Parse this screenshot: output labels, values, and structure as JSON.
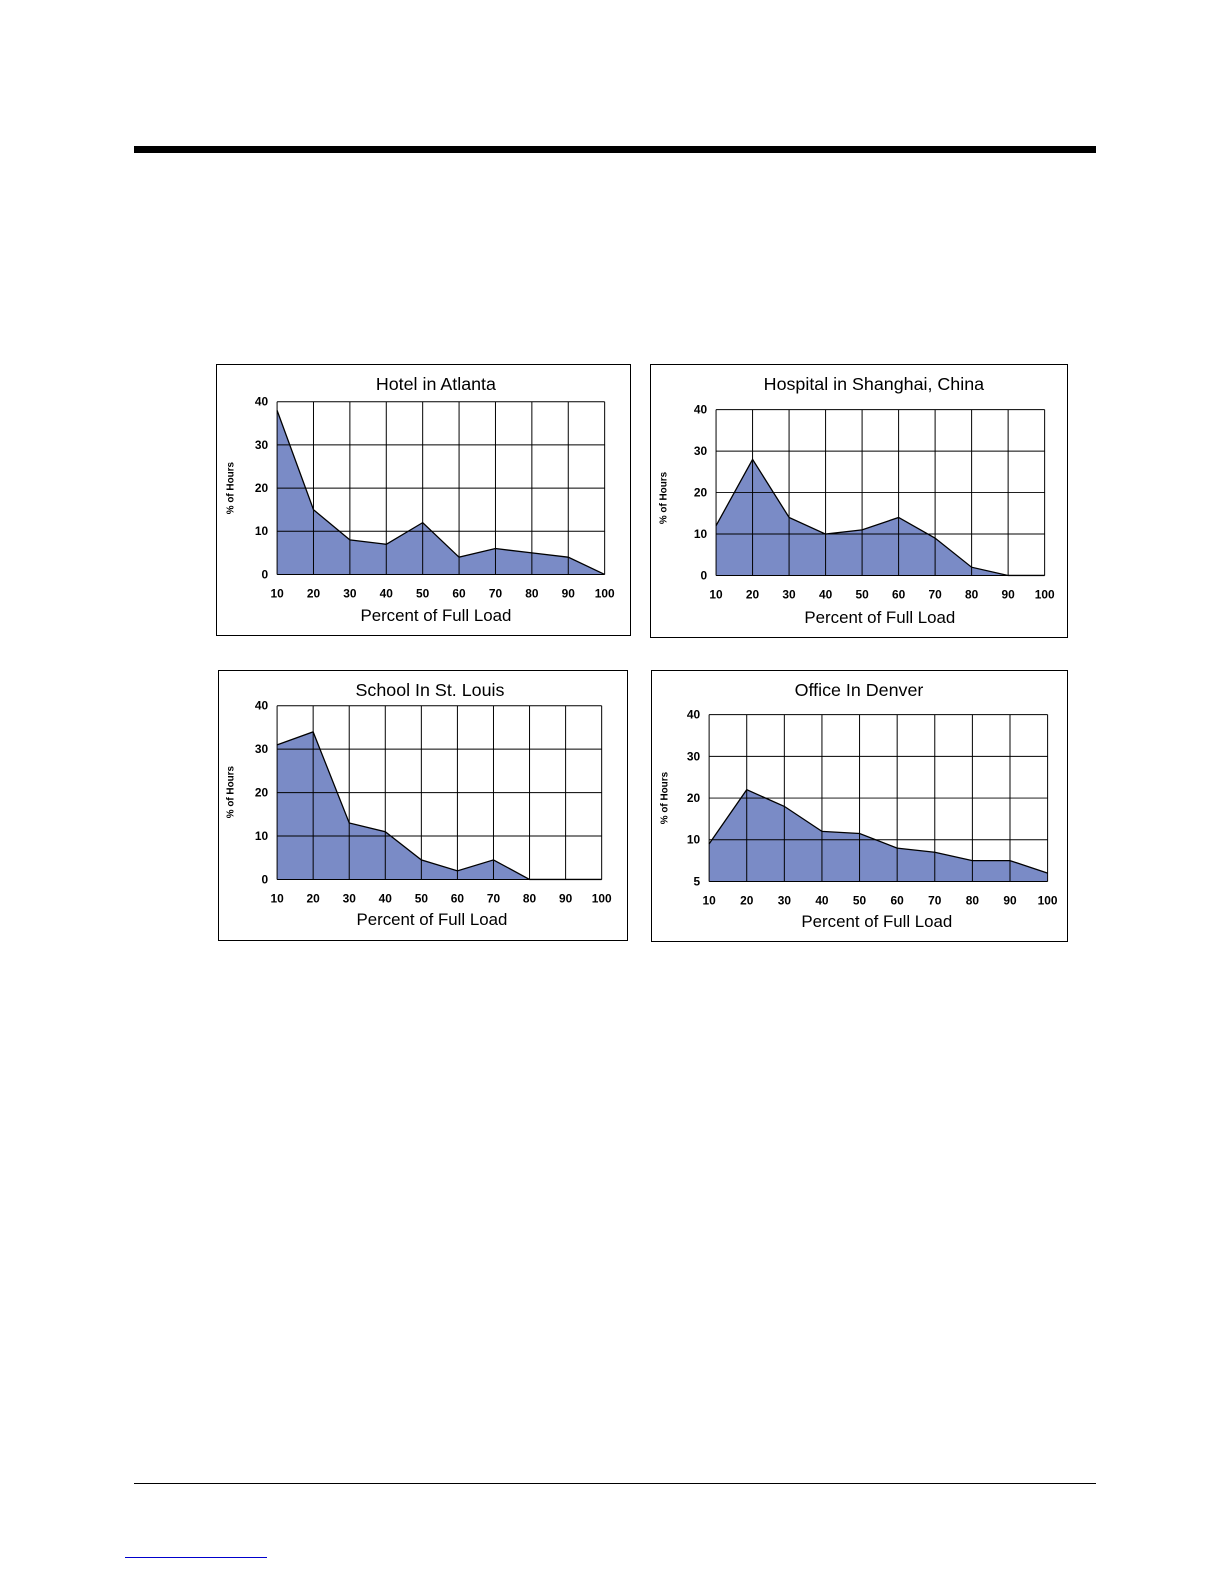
{
  "colors": {
    "area_fill": "#7a8bc6",
    "area_stroke": "#000000",
    "grid": "#000000"
  },
  "chart_data": [
    {
      "type": "area",
      "title": "Hotel in Atlanta",
      "xlabel": "Percent of Full Load",
      "ylabel": "% of Hours",
      "x": [
        10,
        20,
        30,
        40,
        50,
        60,
        70,
        80,
        90,
        100
      ],
      "x_tick_labels": [
        "10",
        "20",
        "30",
        "40",
        "50",
        "60",
        "70",
        "80",
        "90",
        "100"
      ],
      "y_ticks": [
        0,
        10,
        20,
        30,
        40
      ],
      "y_tick_labels": [
        "0",
        "10",
        "20",
        "30",
        "40"
      ],
      "ylim": [
        0,
        40
      ],
      "values": [
        38,
        15,
        8,
        7,
        12,
        4,
        6,
        5,
        4,
        0
      ],
      "grid": true
    },
    {
      "type": "area",
      "title": "Hospital in Shanghai, China",
      "xlabel": "Percent of Full Load",
      "ylabel": "% of Hours",
      "x": [
        10,
        20,
        30,
        40,
        50,
        60,
        70,
        80,
        90,
        100
      ],
      "x_tick_labels": [
        "10",
        "20",
        "30",
        "40",
        "50",
        "60",
        "70",
        "80",
        "90",
        "100"
      ],
      "y_ticks": [
        0,
        10,
        20,
        30,
        40
      ],
      "y_tick_labels": [
        "0",
        "10",
        "20",
        "30",
        "40"
      ],
      "ylim": [
        0,
        40
      ],
      "values": [
        12,
        28,
        14,
        10,
        11,
        14,
        9,
        2,
        0,
        0
      ],
      "grid": true
    },
    {
      "type": "area",
      "title": "School In St. Louis",
      "xlabel": "Percent of Full Load",
      "ylabel": "% of Hours",
      "x": [
        10,
        20,
        30,
        40,
        50,
        60,
        70,
        80,
        90,
        100
      ],
      "x_tick_labels": [
        "10",
        "20",
        "30",
        "40",
        "50",
        "60",
        "70",
        "80",
        "90",
        "100"
      ],
      "y_ticks": [
        0,
        10,
        20,
        30,
        40
      ],
      "y_tick_labels": [
        "0",
        "10",
        "20",
        "30",
        "40"
      ],
      "ylim": [
        0,
        40
      ],
      "values": [
        31,
        34,
        13,
        11,
        4.5,
        2,
        4.5,
        0,
        0,
        0
      ],
      "grid": true
    },
    {
      "type": "area",
      "title": "Office In Denver",
      "xlabel": "Percent of Full Load",
      "ylabel": "% of Hours",
      "x": [
        10,
        20,
        30,
        40,
        50,
        60,
        70,
        80,
        90,
        100
      ],
      "x_tick_labels": [
        "10",
        "20",
        "30",
        "40",
        "50",
        "60",
        "70",
        "80",
        "90",
        "100"
      ],
      "y_ticks": [
        5,
        10,
        20,
        30,
        40
      ],
      "y_tick_labels": [
        "5",
        "10",
        "20",
        "30",
        "40"
      ],
      "ylim": [
        0,
        40
      ],
      "values": [
        9,
        22,
        18,
        12,
        11.5,
        8,
        7,
        5,
        5,
        2
      ],
      "grid": true
    }
  ]
}
